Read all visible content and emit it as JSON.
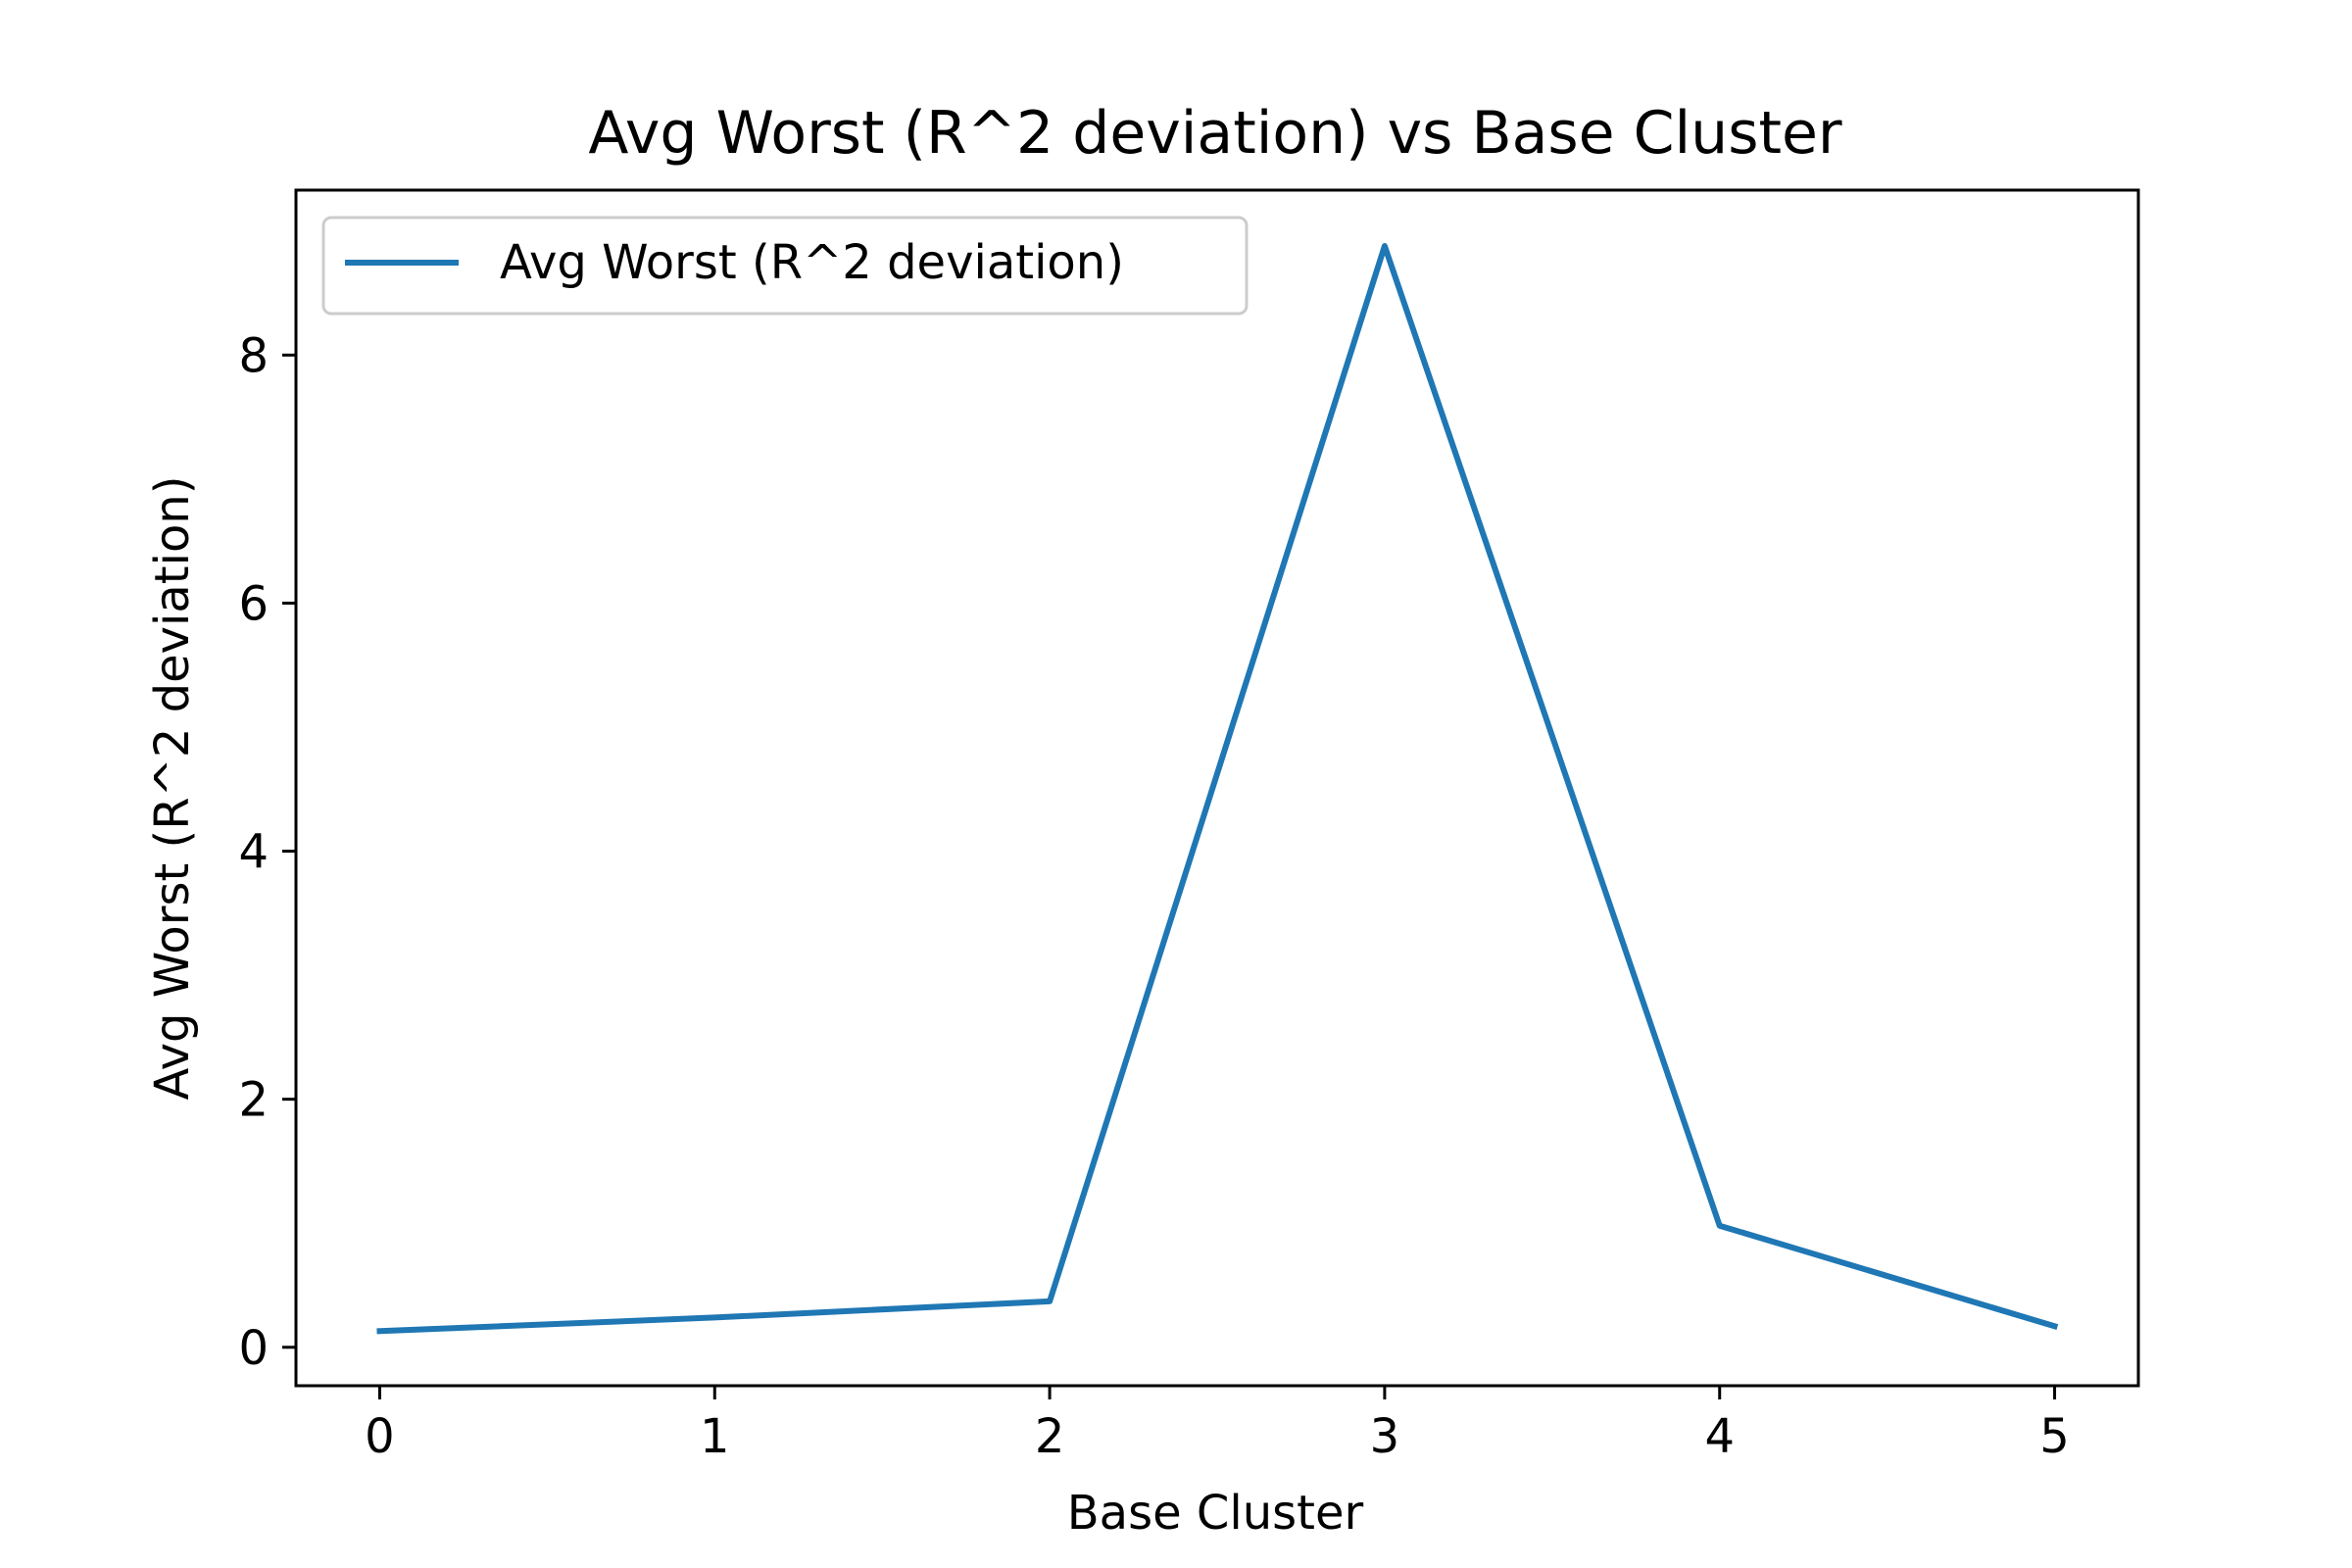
{
  "chart_data": {
    "type": "line",
    "title": "Avg Worst (R^2 deviation) vs Base Cluster",
    "xlabel": "Base Cluster",
    "ylabel": "Avg Worst (R^2 deviation)",
    "x": [
      0,
      1,
      2,
      3,
      4,
      5
    ],
    "series": [
      {
        "name": "Avg Worst (R^2 deviation)",
        "color": "#1f77b4",
        "values": [
          0.13,
          0.24,
          0.37,
          8.88,
          0.98,
          0.17
        ]
      }
    ],
    "xticks": [
      0,
      1,
      2,
      3,
      4,
      5
    ],
    "yticks": [
      0,
      2,
      4,
      6,
      8
    ],
    "xlim": [
      -0.25,
      5.25
    ],
    "ylim": [
      -0.31,
      9.33
    ],
    "grid": false,
    "legend_position": "top-left"
  }
}
